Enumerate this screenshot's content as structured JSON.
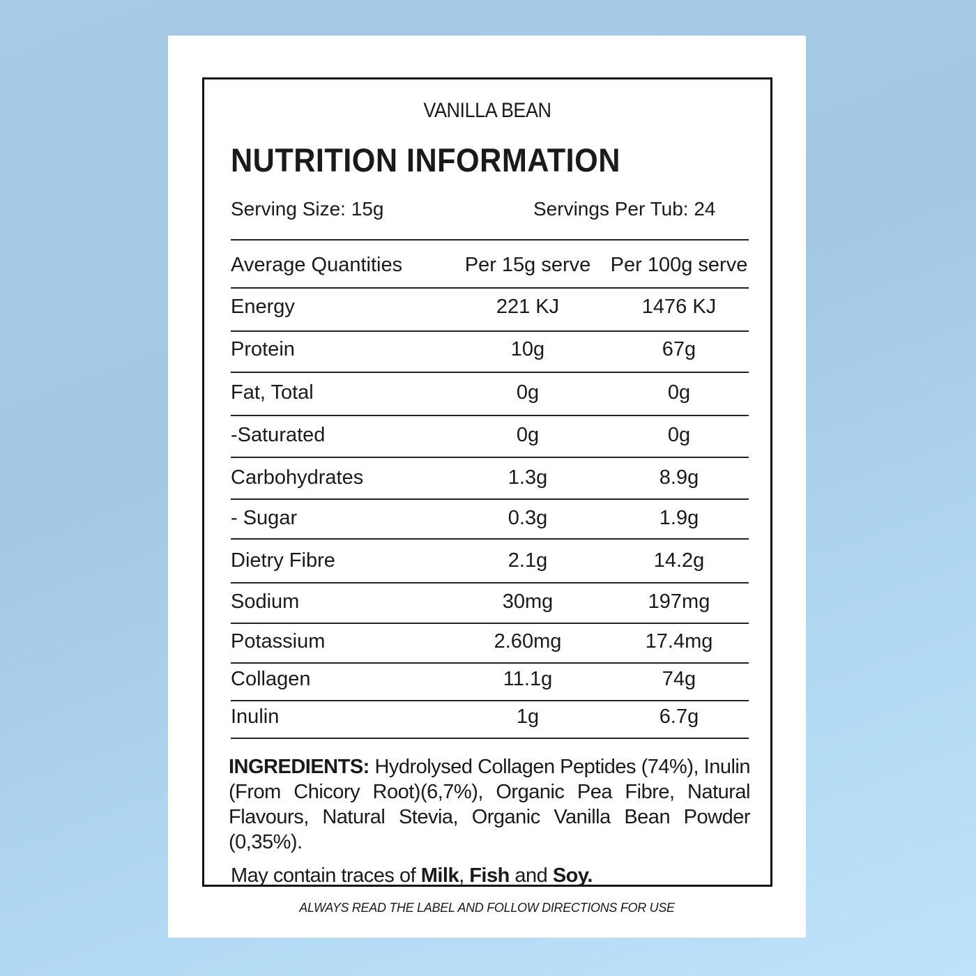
{
  "flavor": "VANILLA BEAN",
  "title": "NUTRITION INFORMATION",
  "serving_size": "Serving Size: 15g",
  "servings_per_tub": "Servings Per Tub: 24",
  "table": {
    "headers": [
      "Average Quantities",
      "Per 15g serve",
      "Per 100g serve"
    ],
    "rows": [
      [
        "Energy",
        "221 KJ",
        "1476 KJ"
      ],
      [
        "Protein",
        "10g",
        "67g"
      ],
      [
        "Fat, Total",
        "0g",
        "0g"
      ],
      [
        "-Saturated",
        "0g",
        "0g"
      ],
      [
        "Carbohydrates",
        "1.3g",
        "8.9g"
      ],
      [
        "- Sugar",
        "0.3g",
        "1.9g"
      ],
      [
        "Dietry Fibre",
        "2.1g",
        "14.2g"
      ],
      [
        "Sodium",
        "30mg",
        "197mg"
      ],
      [
        "Potassium",
        "2.60mg",
        "17.4mg"
      ],
      [
        "Collagen",
        "11.1g",
        "74g"
      ],
      [
        "Inulin",
        "1g",
        "6.7g"
      ]
    ]
  },
  "ingredients": {
    "label": "INGREDIENTS:",
    "text": " Hydrolysed Collagen Peptides (74%), Inulin (From Chicory Root)(6,7%), Organic Pea Fibre, Natural Flavours, Natural Stevia, Organic Vanilla Bean Powder (0,35%)."
  },
  "allergens": {
    "prefix": "May contain traces of ",
    "a1": "Milk",
    "sep1": ", ",
    "a2": "Fish",
    "sep2": " and ",
    "a3": "Soy."
  },
  "footer": "ALWAYS READ THE LABEL AND FOLLOW DIRECTIONS FOR USE"
}
